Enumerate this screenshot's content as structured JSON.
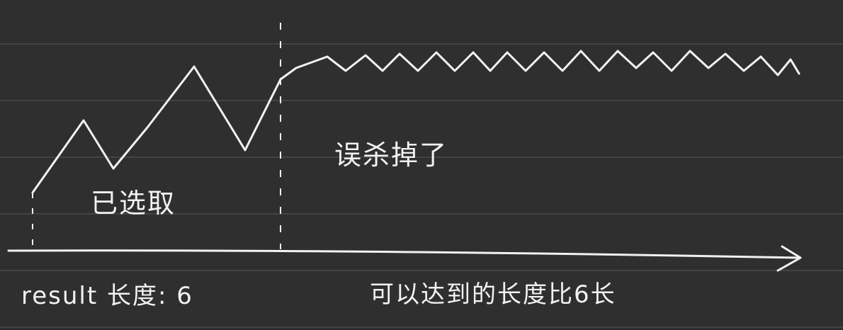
{
  "labels": {
    "selected": "已选取",
    "mistakenly_removed": "误杀掉了",
    "result_length": "result 长度: 6",
    "achievable_length": "可以达到的长度比6长"
  },
  "colors": {
    "background": "#2f2f2f",
    "ruled_line": "#4a4a4a",
    "ink": "#f2f2f2"
  }
}
